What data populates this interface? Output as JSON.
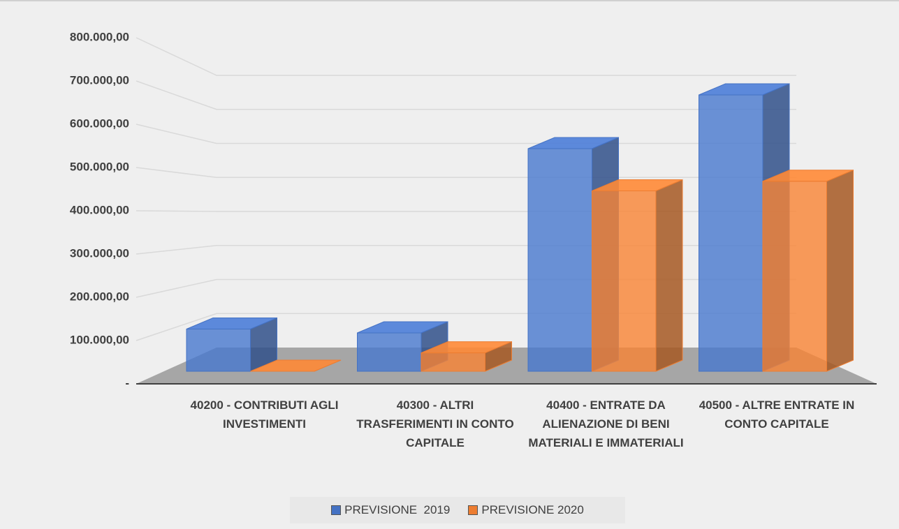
{
  "chart_data": {
    "type": "bar3d",
    "categories": [
      "40200 - CONTRIBUTI AGLI INVESTIMENTI",
      "40300 - ALTRI TRASFERIMENTI IN CONTO CAPITALE",
      "40400 - ENTRATE DA ALIENAZIONE DI BENI MATERIALI E IMMATERIALI",
      "40500 - ALTRE ENTRATE IN CONTO CAPITALE"
    ],
    "series": [
      {
        "name": "PREVISIONE  2019",
        "color": "#4472c4",
        "values": [
          110000,
          100000,
          580000,
          720000
        ]
      },
      {
        "name": "PREVISIONE 2020",
        "color": "#ed7d31",
        "values": [
          0,
          48000,
          470000,
          495000
        ]
      }
    ],
    "ylim": [
      0,
      800000
    ],
    "yticks": [
      {
        "value": 0,
        "label": "-"
      },
      {
        "value": 100000,
        "label": "100.000,00"
      },
      {
        "value": 200000,
        "label": "200.000,00"
      },
      {
        "value": 300000,
        "label": "300.000,00"
      },
      {
        "value": 400000,
        "label": "400.000,00"
      },
      {
        "value": 500000,
        "label": "500.000,00"
      },
      {
        "value": 600000,
        "label": "600.000,00"
      },
      {
        "value": 700000,
        "label": "700.000,00"
      },
      {
        "value": 800000,
        "label": "800.000,00"
      }
    ],
    "grid": true
  }
}
